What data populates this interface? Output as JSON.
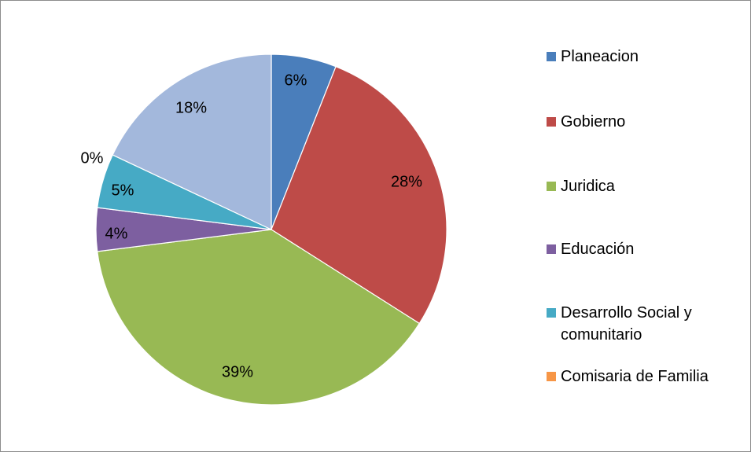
{
  "chart_data": {
    "type": "pie",
    "title": "",
    "start_angle_deg": 0,
    "direction": "clockwise",
    "slices": [
      {
        "name": "Planeacion",
        "value": 6,
        "label": "6%",
        "color": "#4a7ebb"
      },
      {
        "name": "Gobierno",
        "value": 28,
        "label": "28%",
        "color": "#be4b48"
      },
      {
        "name": "Juridica",
        "value": 39,
        "label": "39%",
        "color": "#98b954"
      },
      {
        "name": "Educación",
        "value": 4,
        "label": "4%",
        "color": "#7d5fa0"
      },
      {
        "name": "Desarrollo Social y comunitario",
        "value": 5,
        "label": "5%",
        "color": "#46aac5"
      },
      {
        "name": "Comisaria de Familia",
        "value": 0,
        "label": "0%",
        "color": "#f79646"
      },
      {
        "name": "",
        "value": 18,
        "label": "18%",
        "color": "#a3b8dc"
      }
    ],
    "legend": {
      "placement": "right",
      "entries": [
        {
          "name": "Planeacion",
          "color": "#4a7ebb"
        },
        {
          "name": "Gobierno",
          "color": "#be4b48"
        },
        {
          "name": "Juridica",
          "color": "#98b954"
        },
        {
          "name": "Educación",
          "color": "#7d5fa0"
        },
        {
          "name": "Desarrollo Social y comunitario",
          "color": "#46aac5"
        },
        {
          "name": "Comisaria de Familia",
          "color": "#f79646"
        }
      ]
    }
  }
}
